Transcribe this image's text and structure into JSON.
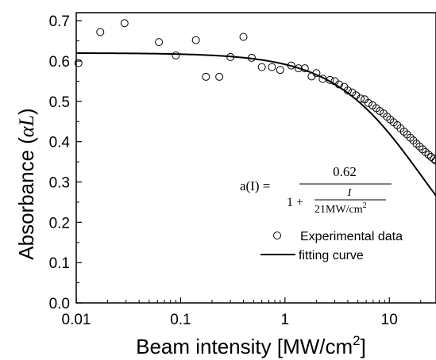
{
  "chart_data": {
    "type": "scatter",
    "x_scale": "log",
    "xlabel": "Beam intensity [MW/cm",
    "xlabel_sup": "2",
    "xlabel_end": "]",
    "ylabel_prefix": "Absorbance (",
    "ylabel_symbol": "αL",
    "ylabel_suffix": ")",
    "xlim": [
      0.01,
      28
    ],
    "ylim": [
      0.0,
      0.72
    ],
    "x_ticks": [
      "0.01",
      "0.1",
      "1",
      "10"
    ],
    "y_ticks": [
      "0.0",
      "0.1",
      "0.2",
      "0.3",
      "0.4",
      "0.5",
      "0.6",
      "0.7"
    ],
    "legend_position": "lower-right",
    "legend": {
      "experimental": "Experimental data",
      "fitting": "fitting curve"
    },
    "equation": {
      "lhs": "a(I) =",
      "numerator": "0.62",
      "denominator_prefix": "1 +",
      "inner_numerator": "I",
      "inner_denominator": "21MW/cm",
      "inner_denominator_sup": "2"
    },
    "fit": {
      "a0": 0.62,
      "Is": 21
    },
    "series": [
      {
        "name": "Experimental data",
        "marker": "open-circle",
        "points": [
          [
            0.0105,
            0.595
          ],
          [
            0.017,
            0.672
          ],
          [
            0.029,
            0.694
          ],
          [
            0.062,
            0.647
          ],
          [
            0.09,
            0.614
          ],
          [
            0.14,
            0.652
          ],
          [
            0.175,
            0.561
          ],
          [
            0.235,
            0.561
          ],
          [
            0.3,
            0.61
          ],
          [
            0.4,
            0.66
          ],
          [
            0.48,
            0.608
          ],
          [
            0.6,
            0.585
          ],
          [
            0.75,
            0.585
          ],
          [
            0.9,
            0.578
          ],
          [
            1.15,
            0.589
          ],
          [
            1.35,
            0.582
          ],
          [
            1.55,
            0.582
          ],
          [
            1.8,
            0.562
          ],
          [
            2.0,
            0.57
          ],
          [
            2.3,
            0.556
          ],
          [
            2.7,
            0.553
          ],
          [
            3.0,
            0.55
          ],
          [
            3.3,
            0.542
          ],
          [
            3.7,
            0.536
          ],
          [
            4.0,
            0.527
          ],
          [
            4.4,
            0.522
          ],
          [
            4.8,
            0.515
          ],
          [
            5.3,
            0.507
          ],
          [
            5.8,
            0.505
          ],
          [
            6.3,
            0.496
          ],
          [
            6.9,
            0.49
          ],
          [
            7.5,
            0.483
          ],
          [
            8.1,
            0.476
          ],
          [
            8.8,
            0.47
          ],
          [
            9.5,
            0.462
          ],
          [
            10.2,
            0.455
          ],
          [
            11.0,
            0.448
          ],
          [
            11.9,
            0.441
          ],
          [
            12.8,
            0.433
          ],
          [
            13.8,
            0.425
          ],
          [
            14.8,
            0.418
          ],
          [
            15.9,
            0.41
          ],
          [
            17.0,
            0.403
          ],
          [
            18.2,
            0.395
          ],
          [
            19.5,
            0.388
          ],
          [
            20.8,
            0.381
          ],
          [
            22.2,
            0.374
          ],
          [
            23.7,
            0.368
          ],
          [
            25.2,
            0.362
          ],
          [
            26.8,
            0.357
          ],
          [
            27.8,
            0.353
          ]
        ]
      },
      {
        "name": "fitting curve",
        "type": "line",
        "formula": "0.62/(1+I/21)"
      }
    ]
  }
}
